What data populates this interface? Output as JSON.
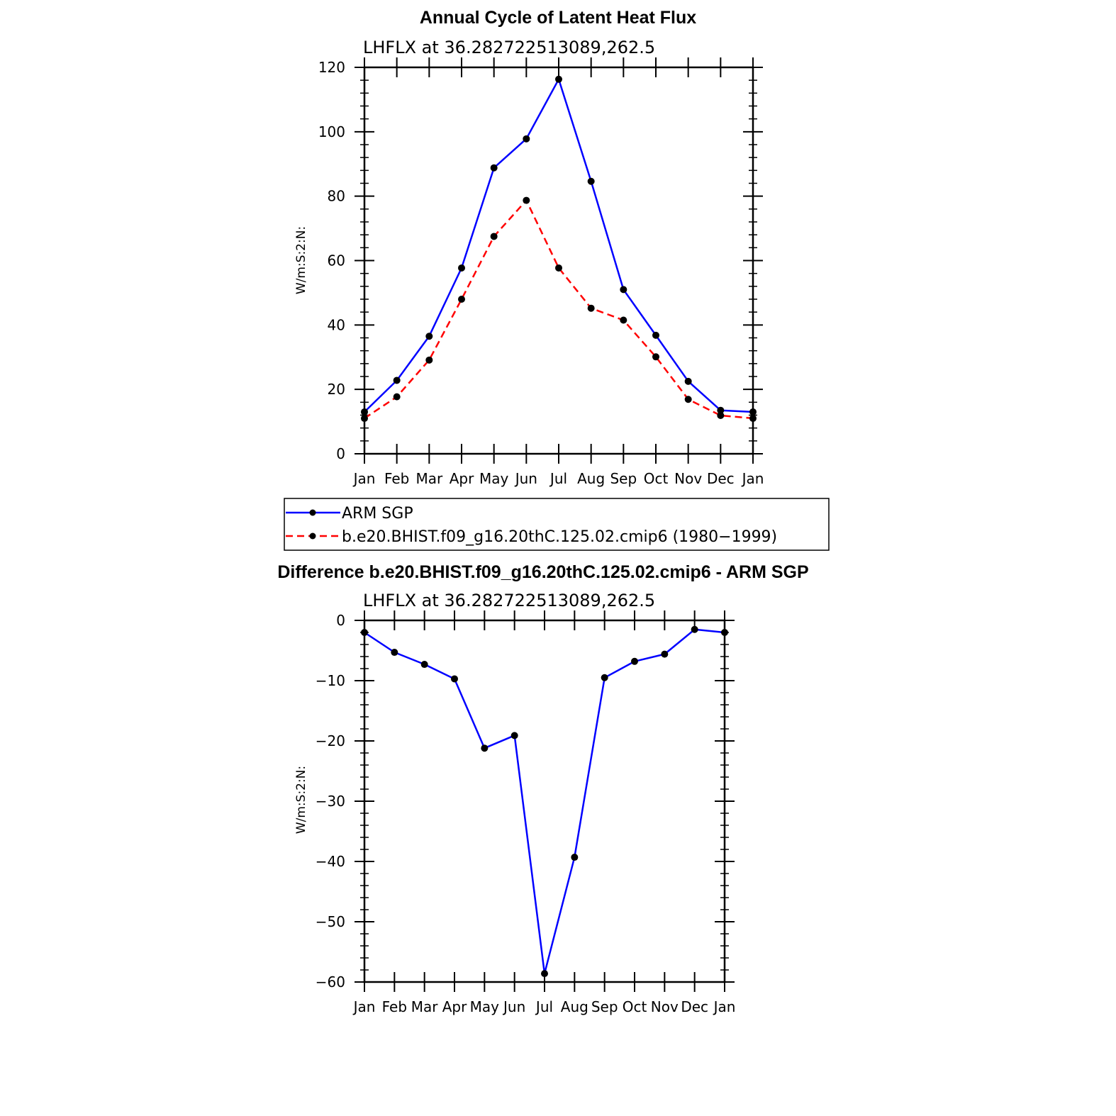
{
  "chart_data": [
    {
      "type": "line",
      "title": "Annual Cycle of Latent Heat Flux",
      "subtitle": "LHFLX at 36.282722513089,262.5",
      "ylabel": "W/m:S:2:N:",
      "xlabel": "",
      "categories": [
        "Jan",
        "Feb",
        "Mar",
        "Apr",
        "May",
        "Jun",
        "Jul",
        "Aug",
        "Sep",
        "Oct",
        "Nov",
        "Dec",
        "Jan"
      ],
      "ylim": [
        0,
        120
      ],
      "yticks": [
        0,
        20,
        40,
        60,
        80,
        100,
        120
      ],
      "ytick_labels": [
        "0",
        "20",
        "40",
        "60",
        "80",
        "100",
        "120"
      ],
      "series": [
        {
          "name": "ARM SGP",
          "color": "#0000ff",
          "dash": "solid",
          "values": [
            13.0,
            22.8,
            36.5,
            57.7,
            88.8,
            97.8,
            116.3,
            84.6,
            51.0,
            36.8,
            22.5,
            13.5,
            13.0
          ]
        },
        {
          "name": "b.e20.BHIST.f09_g16.20thC.125.02.cmip6 (1980−1999)",
          "color": "#ff0000",
          "dash": "dashed",
          "values": [
            11.0,
            17.7,
            29.1,
            48.0,
            67.5,
            78.7,
            57.7,
            45.2,
            41.5,
            30.1,
            16.9,
            11.9,
            11.0
          ]
        }
      ],
      "legend_position": "below"
    },
    {
      "type": "line",
      "title": "Difference b.e20.BHIST.f09_g16.20thC.125.02.cmip6 - ARM SGP",
      "subtitle": "LHFLX at 36.282722513089,262.5",
      "ylabel": "W/m:S:2:N:",
      "xlabel": "",
      "categories": [
        "Jan",
        "Feb",
        "Mar",
        "Apr",
        "May",
        "Jun",
        "Jul",
        "Aug",
        "Sep",
        "Oct",
        "Nov",
        "Dec",
        "Jan"
      ],
      "ylim": [
        -60,
        0
      ],
      "yticks": [
        -60,
        -50,
        -40,
        -30,
        -20,
        -10,
        0
      ],
      "ytick_labels": [
        "−60",
        "−50",
        "−40",
        "−30",
        "−20",
        "−10",
        "0"
      ],
      "series": [
        {
          "color": "#0000ff",
          "dash": "solid",
          "values": [
            -2.0,
            -5.3,
            -7.3,
            -9.7,
            -21.2,
            -19.1,
            -58.6,
            -39.3,
            -9.5,
            -6.8,
            -5.6,
            -1.5,
            -2.0
          ]
        }
      ]
    }
  ]
}
